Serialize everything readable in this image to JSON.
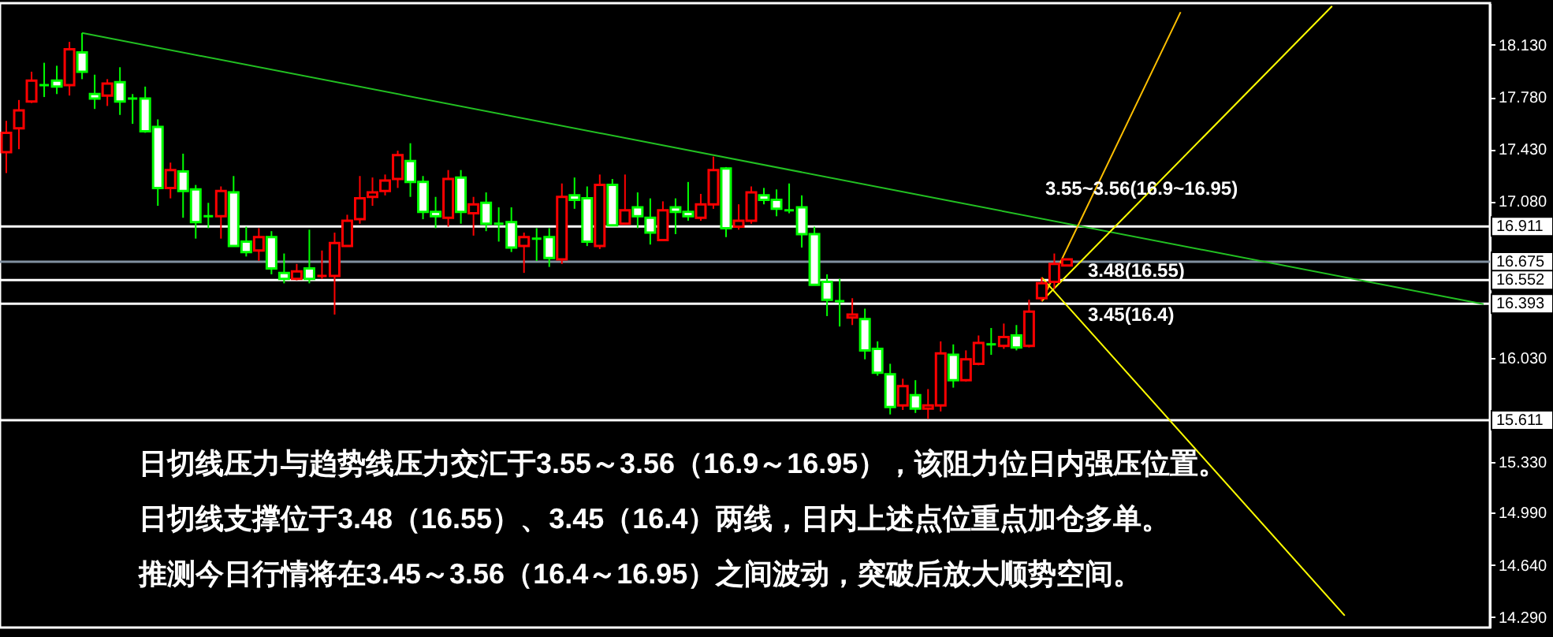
{
  "chart_data": {
    "type": "candlestick",
    "categories": [
      null,
      null,
      null,
      null,
      null,
      null,
      null,
      null,
      null,
      null,
      null,
      null,
      null,
      null,
      null,
      null,
      null,
      null,
      null,
      null,
      null,
      null,
      null,
      null,
      null,
      null,
      null,
      null,
      null,
      null,
      null,
      null,
      null,
      null,
      null,
      null,
      null,
      null,
      null,
      null,
      null,
      null,
      null,
      null,
      null,
      null,
      null,
      null,
      null,
      null,
      null,
      null,
      null,
      null,
      null,
      null,
      null,
      null,
      null,
      null,
      null,
      null,
      null,
      null,
      null,
      null,
      null,
      null,
      null,
      null,
      null,
      null,
      null,
      null,
      null,
      null,
      null,
      null,
      null,
      null,
      null,
      null,
      null,
      null,
      null,
      null,
      null,
      null,
      null,
      null,
      null,
      null,
      null,
      null,
      null,
      null,
      null,
      null,
      null,
      null,
      null,
      null,
      null,
      null,
      null,
      null,
      null,
      null,
      null,
      null,
      null,
      null,
      null,
      null,
      null,
      null,
      null,
      null
    ],
    "ohlc": [
      [
        17.41,
        17.62,
        17.27,
        17.54
      ],
      [
        17.57,
        17.76,
        17.43,
        17.69
      ],
      [
        17.75,
        17.95,
        17.74,
        17.89
      ],
      [
        17.86,
        18.01,
        17.78,
        17.86
      ],
      [
        17.89,
        17.99,
        17.8,
        17.85
      ],
      [
        17.86,
        18.15,
        17.79,
        18.1
      ],
      [
        18.08,
        18.21,
        17.9,
        17.95
      ],
      [
        17.8,
        17.93,
        17.7,
        17.77
      ],
      [
        17.79,
        17.9,
        17.72,
        17.87
      ],
      [
        17.88,
        17.98,
        17.66,
        17.75
      ],
      [
        17.77,
        17.8,
        17.6,
        17.77
      ],
      [
        17.77,
        17.85,
        17.54,
        17.55
      ],
      [
        17.58,
        17.63,
        17.05,
        17.17
      ],
      [
        17.17,
        17.34,
        17.1,
        17.29
      ],
      [
        17.28,
        17.4,
        16.97,
        17.15
      ],
      [
        17.16,
        17.19,
        16.83,
        16.94
      ],
      [
        16.98,
        17.07,
        16.9,
        16.98
      ],
      [
        16.98,
        17.18,
        16.83,
        17.15
      ],
      [
        17.14,
        17.25,
        16.78,
        16.78
      ],
      [
        16.81,
        16.91,
        16.71,
        16.74
      ],
      [
        16.75,
        16.9,
        16.68,
        16.84
      ],
      [
        16.84,
        16.88,
        16.59,
        16.63
      ],
      [
        16.6,
        16.73,
        16.53,
        16.56
      ],
      [
        16.56,
        16.66,
        16.55,
        16.61
      ],
      [
        16.63,
        16.89,
        16.53,
        16.56
      ],
      [
        16.58,
        16.75,
        16.56,
        16.58
      ],
      [
        16.58,
        16.87,
        16.32,
        16.8
      ],
      [
        16.78,
        16.99,
        16.78,
        16.95
      ],
      [
        16.96,
        17.25,
        16.93,
        17.1
      ],
      [
        17.11,
        17.24,
        17.05,
        17.14
      ],
      [
        17.15,
        17.26,
        17.12,
        17.22
      ],
      [
        17.23,
        17.42,
        17.17,
        17.39
      ],
      [
        17.35,
        17.47,
        17.11,
        17.21
      ],
      [
        17.21,
        17.25,
        16.96,
        17.01
      ],
      [
        17.01,
        17.11,
        16.9,
        16.98
      ],
      [
        16.97,
        17.29,
        16.91,
        17.23
      ],
      [
        17.24,
        17.29,
        16.93,
        17.01
      ],
      [
        17.0,
        17.11,
        16.85,
        17.06
      ],
      [
        17.07,
        17.14,
        16.88,
        16.93
      ],
      [
        16.93,
        17.04,
        16.81,
        16.93
      ],
      [
        16.94,
        17.04,
        16.74,
        16.77
      ],
      [
        16.78,
        16.87,
        16.6,
        16.84
      ],
      [
        16.83,
        16.9,
        16.68,
        16.83
      ],
      [
        16.84,
        16.9,
        16.64,
        16.7
      ],
      [
        16.69,
        17.2,
        16.66,
        17.11
      ],
      [
        17.12,
        17.24,
        17.03,
        17.09
      ],
      [
        17.1,
        17.18,
        16.78,
        16.81
      ],
      [
        16.78,
        17.26,
        16.76,
        17.19
      ],
      [
        17.19,
        17.23,
        16.92,
        16.92
      ],
      [
        16.93,
        17.26,
        16.93,
        17.02
      ],
      [
        17.04,
        17.14,
        16.9,
        16.98
      ],
      [
        16.97,
        17.1,
        16.79,
        16.87
      ],
      [
        16.82,
        17.08,
        16.82,
        17.02
      ],
      [
        17.04,
        17.1,
        16.86,
        17.01
      ],
      [
        17.01,
        17.21,
        16.95,
        16.98
      ],
      [
        16.97,
        17.13,
        16.95,
        17.06
      ],
      [
        17.06,
        17.38,
        17.03,
        17.29
      ],
      [
        17.3,
        17.31,
        16.84,
        16.9
      ],
      [
        16.91,
        17.06,
        16.89,
        16.95
      ],
      [
        16.95,
        17.18,
        16.93,
        17.14
      ],
      [
        17.12,
        17.17,
        17.06,
        17.09
      ],
      [
        17.09,
        17.16,
        16.98,
        17.03
      ],
      [
        17.02,
        17.2,
        17.0,
        17.02
      ],
      [
        17.04,
        17.12,
        16.77,
        16.86
      ],
      [
        16.86,
        16.91,
        16.52,
        16.52
      ],
      [
        16.54,
        16.59,
        16.31,
        16.42
      ],
      [
        16.41,
        16.56,
        16.24,
        16.41
      ],
      [
        16.3,
        16.43,
        16.25,
        16.32
      ],
      [
        16.29,
        16.36,
        16.02,
        16.08
      ],
      [
        16.09,
        16.14,
        15.91,
        15.93
      ],
      [
        15.92,
        15.99,
        15.65,
        15.7
      ],
      [
        15.71,
        15.89,
        15.68,
        15.84
      ],
      [
        15.78,
        15.88,
        15.66,
        15.69
      ],
      [
        15.69,
        15.82,
        15.62,
        15.71
      ],
      [
        15.71,
        16.14,
        15.67,
        16.06
      ],
      [
        16.05,
        16.12,
        15.83,
        15.88
      ],
      [
        15.88,
        16.08,
        15.87,
        16.02
      ],
      [
        15.99,
        16.18,
        15.98,
        16.13
      ],
      [
        16.12,
        16.23,
        16.05,
        16.12
      ],
      [
        16.11,
        16.26,
        16.09,
        16.17
      ],
      [
        16.18,
        16.25,
        16.08,
        16.1
      ],
      [
        16.11,
        16.42,
        16.1,
        16.34
      ],
      [
        16.43,
        16.57,
        16.41,
        16.53
      ],
      [
        16.54,
        16.73,
        16.49,
        16.66
      ],
      [
        16.65,
        16.69,
        16.65,
        16.69
      ],
      null,
      null,
      null,
      null,
      null,
      null,
      null,
      null,
      null,
      null,
      null,
      null,
      null,
      null,
      null,
      null,
      null,
      null,
      null,
      null,
      null,
      null,
      null,
      null,
      null,
      null,
      null,
      null,
      null,
      null,
      null,
      null,
      null
    ],
    "colors": [
      "#ff0000",
      "#ff0000",
      "#ff0000",
      "#00ff00",
      "#00ff00",
      "#ff0000",
      "#00ff00",
      "#00ff00",
      "#ff0000",
      "#00ff00",
      "#00ff00",
      "#00ff00",
      "#00ff00",
      "#ff0000",
      "#00ff00",
      "#00ff00",
      "#00ff00",
      "#ff0000",
      "#00ff00",
      "#00ff00",
      "#ff0000",
      "#00ff00",
      "#00ff00",
      "#ff0000",
      "#00ff00",
      "#ff0000",
      "#ff0000",
      "#ff0000",
      "#ff0000",
      "#ff0000",
      "#ff0000",
      "#ff0000",
      "#00ff00",
      "#00ff00",
      "#00ff00",
      "#ff0000",
      "#00ff00",
      "#ff0000",
      "#00ff00",
      "#00ff00",
      "#00ff00",
      "#ff0000",
      "#00ff00",
      "#00ff00",
      "#ff0000",
      "#00ff00",
      "#00ff00",
      "#ff0000",
      "#00ff00",
      "#ff0000",
      "#00ff00",
      "#00ff00",
      "#ff0000",
      "#00ff00",
      "#00ff00",
      "#ff0000",
      "#ff0000",
      "#00ff00",
      "#ff0000",
      "#ff0000",
      "#00ff00",
      "#00ff00",
      "#00ff00",
      "#00ff00",
      "#00ff00",
      "#00ff00",
      "#00ff00",
      "#ff0000",
      "#00ff00",
      "#00ff00",
      "#00ff00",
      "#ff0000",
      "#00ff00",
      "#ff0000",
      "#ff0000",
      "#00ff00",
      "#ff0000",
      "#ff0000",
      "#00ff00",
      "#ff0000",
      "#00ff00",
      "#ff0000",
      "#ff0000",
      "#ff0000",
      "#ff0000",
      null,
      null,
      null,
      null,
      null,
      null,
      null,
      null,
      null,
      null,
      null,
      null,
      null,
      null,
      null,
      null,
      null,
      null,
      null,
      null,
      null,
      null,
      null,
      null,
      null,
      null,
      null,
      null,
      null,
      null,
      null,
      null,
      null
    ],
    "series": [
      {
        "type": "line",
        "color": "#22c022",
        "values": [
          null,
          null,
          null,
          null,
          null,
          null,
          18.21,
          null,
          null,
          null,
          null,
          null,
          null,
          null,
          null,
          null,
          null,
          null,
          null,
          null,
          null,
          null,
          null,
          null,
          null,
          null,
          null,
          null,
          null,
          null,
          null,
          null,
          null,
          null,
          null,
          null,
          null,
          null,
          null,
          null,
          null,
          null,
          null,
          null,
          null,
          null,
          null,
          null,
          null,
          null,
          null,
          null,
          null,
          null,
          null,
          null,
          null,
          null,
          null,
          null,
          null,
          null,
          null,
          null,
          null,
          null,
          null,
          null,
          null,
          null,
          null,
          null,
          null,
          null,
          null,
          null,
          null,
          null,
          null,
          null,
          null,
          null,
          null,
          null,
          null,
          null,
          null,
          null,
          null,
          null,
          null,
          null,
          null,
          null,
          null,
          null,
          null,
          null,
          null,
          null,
          null,
          null,
          null,
          null,
          null,
          null,
          null,
          null,
          null,
          null,
          null,
          null,
          null,
          null,
          null,
          null,
          null,
          16.39
        ]
      },
      {
        "type": "line",
        "color": "#ffc000",
        "values": [
          null,
          null,
          null,
          null,
          null,
          null,
          null,
          null,
          null,
          null,
          null,
          null,
          null,
          null,
          null,
          null,
          null,
          null,
          null,
          null,
          null,
          null,
          null,
          null,
          null,
          null,
          null,
          null,
          null,
          null,
          null,
          null,
          null,
          null,
          null,
          null,
          null,
          null,
          null,
          null,
          null,
          null,
          null,
          null,
          null,
          null,
          null,
          null,
          null,
          null,
          null,
          null,
          null,
          null,
          null,
          null,
          null,
          null,
          null,
          null,
          null,
          null,
          null,
          null,
          null,
          null,
          null,
          null,
          null,
          null,
          null,
          null,
          null,
          null,
          null,
          null,
          null,
          null,
          null,
          null,
          null,
          null,
          16.41,
          null,
          null,
          null,
          null,
          null,
          null,
          null,
          null,
          null,
          null,
          18.35,
          null,
          null,
          null,
          null,
          null,
          null,
          null,
          null,
          null,
          null,
          null,
          null,
          null,
          null,
          null,
          null,
          null,
          null,
          null,
          null,
          null,
          null,
          null,
          null
        ]
      },
      {
        "type": "line",
        "color": "#ffff00",
        "values": [
          null,
          null,
          null,
          null,
          null,
          null,
          null,
          null,
          null,
          null,
          null,
          null,
          null,
          null,
          null,
          null,
          null,
          null,
          null,
          null,
          null,
          null,
          null,
          null,
          null,
          null,
          null,
          null,
          null,
          null,
          null,
          null,
          null,
          null,
          null,
          null,
          null,
          null,
          null,
          null,
          null,
          null,
          null,
          null,
          null,
          null,
          null,
          null,
          null,
          null,
          null,
          null,
          null,
          null,
          null,
          null,
          null,
          null,
          null,
          null,
          null,
          null,
          null,
          null,
          null,
          null,
          null,
          null,
          null,
          null,
          null,
          null,
          null,
          null,
          null,
          null,
          null,
          null,
          null,
          null,
          null,
          null,
          16.41,
          null,
          null,
          null,
          null,
          null,
          null,
          null,
          null,
          null,
          null,
          null,
          null,
          null,
          null,
          null,
          null,
          null,
          null,
          null,
          null,
          null,
          null,
          18.39,
          null,
          null,
          null,
          null,
          null,
          null,
          null,
          null,
          null,
          null,
          null,
          null
        ]
      },
      {
        "type": "line",
        "color": "#ffff00",
        "values": [
          null,
          null,
          null,
          null,
          null,
          null,
          null,
          null,
          null,
          null,
          null,
          null,
          null,
          null,
          null,
          null,
          null,
          null,
          null,
          null,
          null,
          null,
          null,
          null,
          null,
          null,
          null,
          null,
          null,
          null,
          null,
          null,
          null,
          null,
          null,
          null,
          null,
          null,
          null,
          null,
          null,
          null,
          null,
          null,
          null,
          null,
          null,
          null,
          null,
          null,
          null,
          null,
          null,
          null,
          null,
          null,
          null,
          null,
          null,
          null,
          null,
          null,
          null,
          null,
          null,
          null,
          null,
          null,
          null,
          null,
          null,
          null,
          null,
          null,
          null,
          null,
          null,
          null,
          null,
          null,
          null,
          null,
          16.57,
          null,
          null,
          null,
          null,
          null,
          null,
          null,
          null,
          null,
          null,
          null,
          null,
          null,
          null,
          null,
          null,
          null,
          null,
          null,
          null,
          null,
          null,
          null,
          14.3,
          null,
          null,
          null,
          null,
          null,
          null,
          null,
          null,
          null,
          null,
          null
        ]
      }
    ],
    "ylim": [
      14.22,
      18.41
    ],
    "yticks": [
      {
        "value": 18.13,
        "label": "18.130"
      },
      {
        "value": 17.78,
        "label": "17.780"
      },
      {
        "value": 17.43,
        "label": "17.430"
      },
      {
        "value": 17.08,
        "label": "17.080"
      },
      {
        "value": 16.73,
        "label": null
      },
      {
        "value": 16.03,
        "label": "16.030"
      },
      {
        "value": 15.68,
        "label": null
      },
      {
        "value": 15.33,
        "label": "15.330"
      },
      {
        "value": 14.99,
        "label": "14.990"
      },
      {
        "value": 14.64,
        "label": "14.640"
      },
      {
        "value": 14.29,
        "label": "14.290"
      }
    ],
    "tick_labels": "y",
    "ref_lines": [
      {
        "axis": "y",
        "value": 16.911,
        "label": "16.911",
        "color": "#ffffff"
      },
      {
        "axis": "y",
        "value": 16.675,
        "label": "16.675",
        "color": "#8090a0"
      },
      {
        "axis": "y",
        "value": 16.552,
        "label": "16.552",
        "color": "#ffffff"
      },
      {
        "axis": "y",
        "value": 16.393,
        "label": "16.393",
        "color": "#ffffff"
      },
      {
        "axis": "y",
        "value": 15.611,
        "label": "15.611",
        "color": "#ffffff"
      }
    ],
    "annotations": [
      {
        "text": "3.55~3.56(16.9~16.95)",
        "y": 16.911
      },
      {
        "text": "3.48(16.55)",
        "y": 16.552
      },
      {
        "text": "3.45(16.4)",
        "y": 16.393
      },
      "日切线压力与趋势线压力交汇于3.55～3.56（16.9～16.95），该阻力位日内强压位置。",
      "日切线支撑位于3.48（16.55）、3.45（16.4）两线，日内上述点位重点加仓多单。",
      "推测今日行情将在3.45～3.56（16.4～16.95）之间波动，突破后放大顺势空间。"
    ]
  }
}
